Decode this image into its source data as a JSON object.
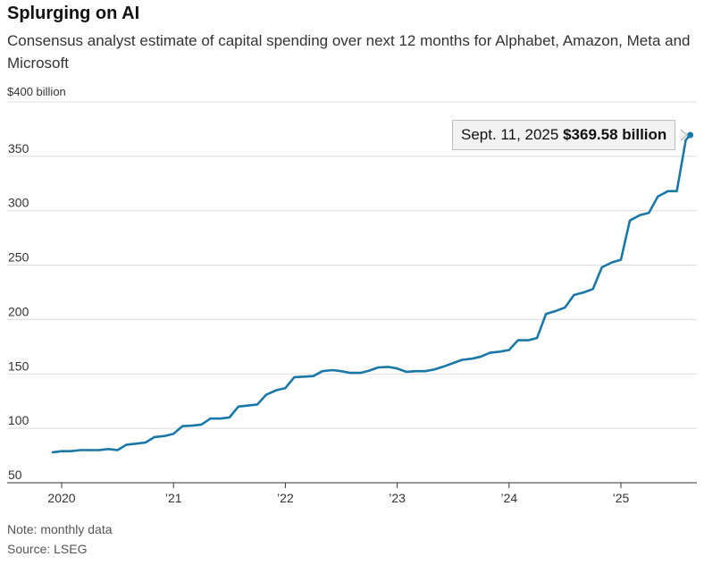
{
  "title": "Splurging on AI",
  "subtitle": "Consensus analyst estimate of capital spending over next 12 months for Alphabet, Amazon, Meta and Microsoft",
  "y_unit_label": "$400 billion",
  "callout": {
    "date": "Sept. 11, 2025",
    "value": "$369.58 billion"
  },
  "note": "Note: monthly data",
  "source": "Source: LSEG",
  "colors": {
    "line": "#1a78a8",
    "grid": "#dcdcdc",
    "axis": "#333333"
  },
  "chart_data": {
    "type": "line",
    "title": "Splurging on AI",
    "xlabel": "",
    "ylabel": "",
    "ylim": [
      50,
      400
    ],
    "y_ticks": [
      {
        "value": 50,
        "label": "50"
      },
      {
        "value": 100,
        "label": "100"
      },
      {
        "value": 150,
        "label": "150"
      },
      {
        "value": 200,
        "label": "200"
      },
      {
        "value": 250,
        "label": "250"
      },
      {
        "value": 300,
        "label": "300"
      },
      {
        "value": 350,
        "label": "350"
      }
    ],
    "x_ticks": [
      {
        "value": 2020,
        "label": "2020"
      },
      {
        "value": 2021,
        "label": "’21"
      },
      {
        "value": 2022,
        "label": "’22"
      },
      {
        "value": 2023,
        "label": "’23"
      },
      {
        "value": 2024,
        "label": "’24"
      },
      {
        "value": 2025,
        "label": "’25"
      }
    ],
    "xlim": [
      2019.75,
      2025.72
    ],
    "grid": true,
    "series": [
      {
        "values": [
          [
            2019.92,
            78
          ],
          [
            2020.0,
            79
          ],
          [
            2020.08,
            79
          ],
          [
            2020.17,
            80
          ],
          [
            2020.25,
            80
          ],
          [
            2020.33,
            80
          ],
          [
            2020.42,
            81
          ],
          [
            2020.5,
            80
          ],
          [
            2020.58,
            85
          ],
          [
            2020.67,
            86
          ],
          [
            2020.75,
            87
          ],
          [
            2020.83,
            92
          ],
          [
            2020.92,
            93
          ],
          [
            2021.0,
            95
          ],
          [
            2021.08,
            102
          ],
          [
            2021.17,
            102.5
          ],
          [
            2021.25,
            103.5
          ],
          [
            2021.33,
            109
          ],
          [
            2021.42,
            109
          ],
          [
            2021.5,
            110
          ],
          [
            2021.58,
            120
          ],
          [
            2021.67,
            121
          ],
          [
            2021.75,
            122
          ],
          [
            2021.83,
            131
          ],
          [
            2021.92,
            135
          ],
          [
            2022.0,
            137
          ],
          [
            2022.08,
            147
          ],
          [
            2022.17,
            147.5
          ],
          [
            2022.25,
            148
          ],
          [
            2022.33,
            152.5
          ],
          [
            2022.42,
            153.5
          ],
          [
            2022.5,
            152.5
          ],
          [
            2022.58,
            151
          ],
          [
            2022.67,
            151
          ],
          [
            2022.75,
            153
          ],
          [
            2022.83,
            156
          ],
          [
            2022.92,
            156.5
          ],
          [
            2023.0,
            155
          ],
          [
            2023.08,
            152
          ],
          [
            2023.17,
            152.5
          ],
          [
            2023.25,
            152.5
          ],
          [
            2023.33,
            154
          ],
          [
            2023.42,
            157
          ],
          [
            2023.5,
            160
          ],
          [
            2023.58,
            163
          ],
          [
            2023.67,
            164
          ],
          [
            2023.75,
            166
          ],
          [
            2023.83,
            169.5
          ],
          [
            2023.92,
            170.5
          ],
          [
            2024.0,
            172
          ],
          [
            2024.08,
            181
          ],
          [
            2024.17,
            181
          ],
          [
            2024.25,
            183
          ],
          [
            2024.33,
            205
          ],
          [
            2024.42,
            208
          ],
          [
            2024.5,
            211
          ],
          [
            2024.58,
            222.5
          ],
          [
            2024.67,
            225
          ],
          [
            2024.75,
            228
          ],
          [
            2024.83,
            248
          ],
          [
            2024.92,
            252.5
          ],
          [
            2025.0,
            255
          ],
          [
            2025.08,
            291
          ],
          [
            2025.17,
            296
          ],
          [
            2025.25,
            298
          ],
          [
            2025.33,
            313
          ],
          [
            2025.42,
            318
          ],
          [
            2025.5,
            318
          ],
          [
            2025.58,
            365
          ],
          [
            2025.62,
            369.58
          ]
        ]
      }
    ],
    "annotations": [
      {
        "x": 2025.62,
        "y": 369.58,
        "text": "Sept. 11, 2025 $369.58 billion"
      }
    ]
  }
}
